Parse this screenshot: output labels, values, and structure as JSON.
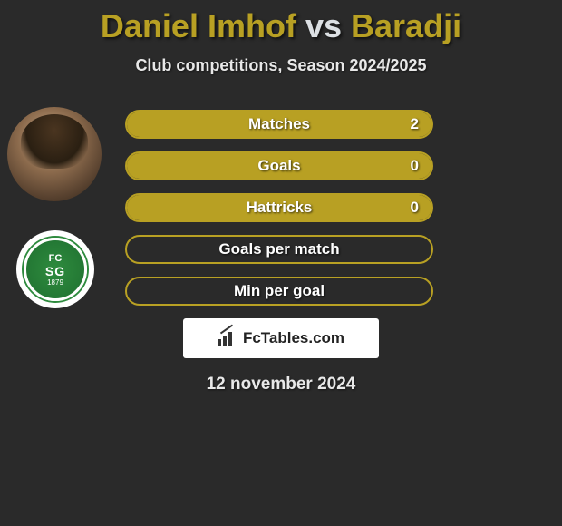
{
  "title": {
    "player1": "Daniel Imhof",
    "vs": "vs",
    "player2": "Baradji"
  },
  "subtitle": "Club competitions, Season 2024/2025",
  "club_badge": {
    "top": "FC",
    "mid": "SG",
    "year": "1879"
  },
  "stats": [
    {
      "label": "Matches",
      "value": "2",
      "fill_pct": 100,
      "show_value": true,
      "show_pill": true
    },
    {
      "label": "Goals",
      "value": "0",
      "fill_pct": 100,
      "show_value": true,
      "show_pill": true
    },
    {
      "label": "Hattricks",
      "value": "0",
      "fill_pct": 100,
      "show_value": true,
      "show_pill": false
    },
    {
      "label": "Goals per match",
      "value": "",
      "fill_pct": 0,
      "show_value": false,
      "show_pill": false
    },
    {
      "label": "Min per goal",
      "value": "",
      "fill_pct": 0,
      "show_value": false,
      "show_pill": false
    }
  ],
  "branding": "FcTables.com",
  "date": "12 november 2024",
  "colors": {
    "accent": "#b8a023",
    "bg": "#2a2a2a",
    "pill": "#dce0e3",
    "text": "#e8e8e8"
  }
}
